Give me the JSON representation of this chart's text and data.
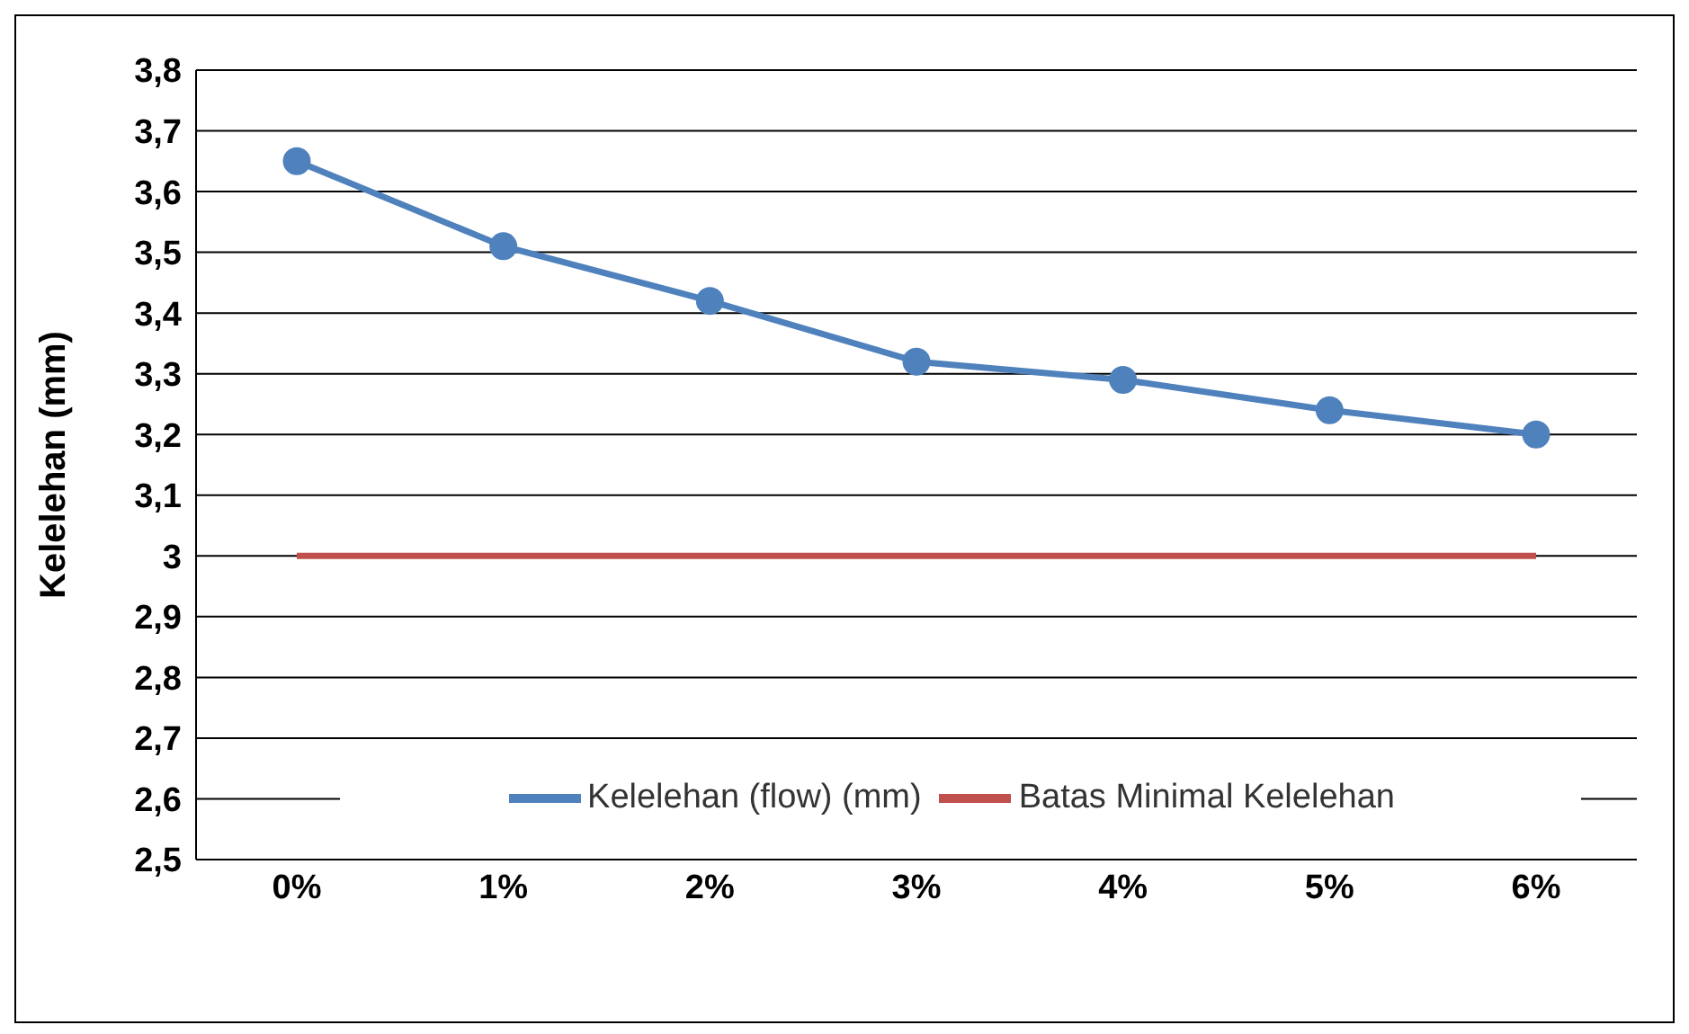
{
  "chart_data": {
    "type": "line",
    "ylabel": "Kelelehan (mm)",
    "categories": [
      "0%",
      "1%",
      "2%",
      "3%",
      "4%",
      "5%",
      "6%"
    ],
    "series": [
      {
        "name": "Kelelehan (flow) (mm)",
        "color": "#4f81bd",
        "marker": "circle",
        "values": [
          3.65,
          3.51,
          3.42,
          3.32,
          3.29,
          3.24,
          3.2
        ]
      },
      {
        "name": "Batas Minimal Kelelehan",
        "color": "#c0504d",
        "marker": "none",
        "values": [
          3,
          3,
          3,
          3,
          3,
          3,
          3
        ]
      }
    ],
    "ylim": [
      2.5,
      3.8
    ],
    "yticks": [
      {
        "value": 2.5,
        "label": "2,5"
      },
      {
        "value": 2.6,
        "label": "2,6"
      },
      {
        "value": 2.7,
        "label": "2,7"
      },
      {
        "value": 2.8,
        "label": "2,8"
      },
      {
        "value": 2.9,
        "label": "2,9"
      },
      {
        "value": 3,
        "label": "3"
      },
      {
        "value": 3.1,
        "label": "3,1"
      },
      {
        "value": 3.2,
        "label": "3,2"
      },
      {
        "value": 3.3,
        "label": "3,3"
      },
      {
        "value": 3.4,
        "label": "3,4"
      },
      {
        "value": 3.5,
        "label": "3,5"
      },
      {
        "value": 3.6,
        "label": "3,6"
      },
      {
        "value": 3.7,
        "label": "3,7"
      },
      {
        "value": 3.8,
        "label": "3,8"
      }
    ],
    "grid": "y",
    "legend": "bottom"
  }
}
